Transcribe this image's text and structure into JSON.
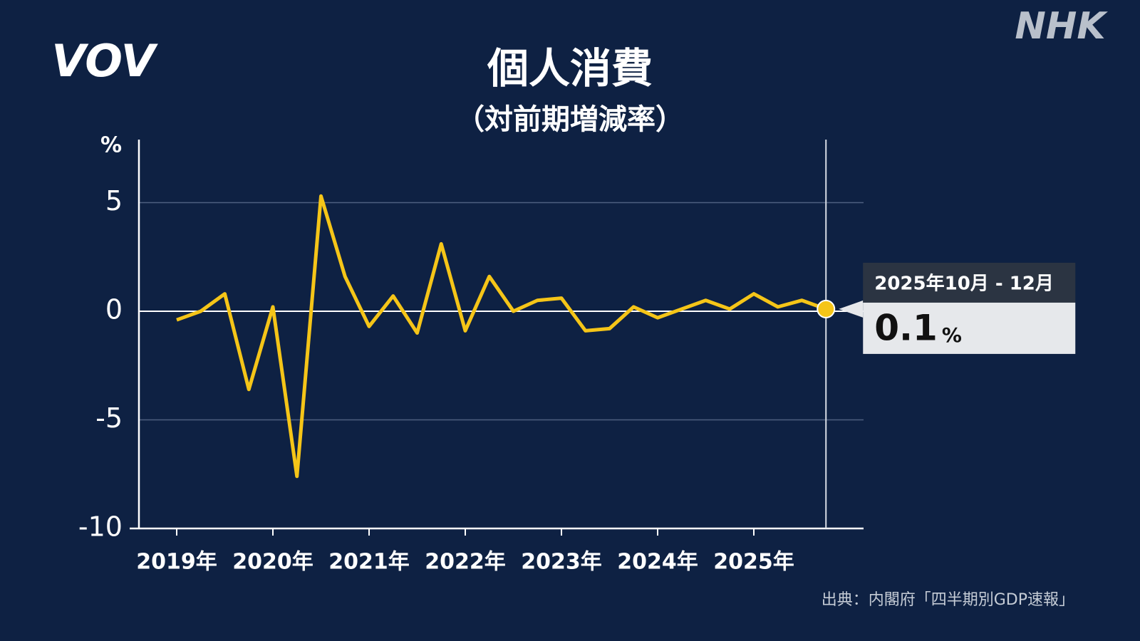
{
  "chart_data": {
    "type": "line",
    "title": "個人消費",
    "subtitle": "（対前期増減率）",
    "y_label": "%",
    "source": "出典：内閣府「四半期別GDP速報」",
    "logos": [
      "VOV",
      "NHK"
    ],
    "categories": [
      "2019年",
      null,
      null,
      null,
      "2020年",
      null,
      null,
      null,
      "2021年",
      null,
      null,
      null,
      "2022年",
      null,
      null,
      null,
      "2023年",
      null,
      null,
      null,
      "2024年",
      null,
      null,
      null,
      "2025年",
      null,
      null,
      null
    ],
    "series": [
      {
        "name": "個人消費",
        "color": "#f5c518",
        "values": [
          -0.4,
          0.0,
          0.8,
          -3.6,
          0.2,
          -7.6,
          5.3,
          1.6,
          -0.7,
          0.7,
          -1.0,
          3.1,
          -0.9,
          1.6,
          0.0,
          0.5,
          0.6,
          -0.9,
          -0.8,
          0.2,
          -0.3,
          0.1,
          0.5,
          0.1,
          0.8,
          0.2,
          0.5,
          0.1
        ]
      }
    ],
    "ylim": [
      -10,
      7.9
    ],
    "yticks": [
      -10,
      -5,
      0,
      5
    ],
    "grid": true,
    "callout": {
      "period": "2025年10月 - 12月"
    }
  }
}
